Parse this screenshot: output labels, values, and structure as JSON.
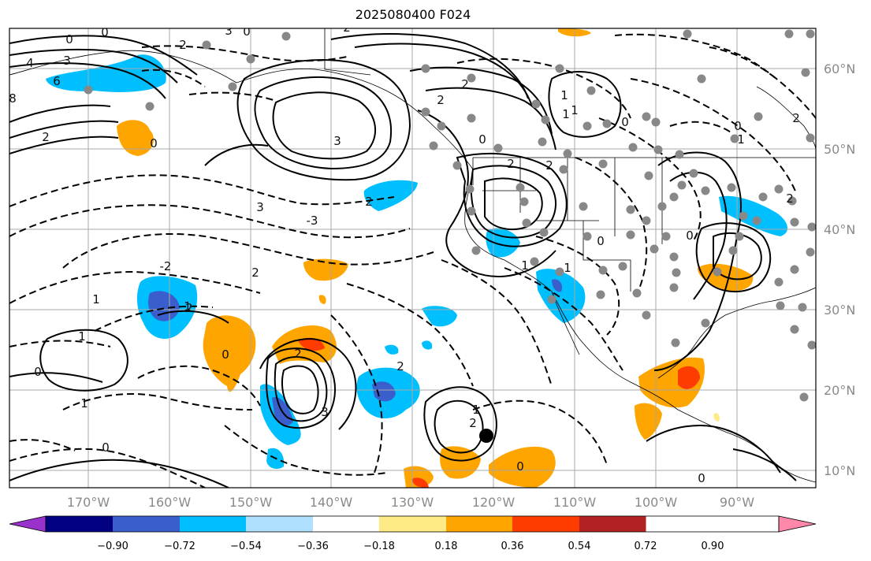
{
  "title": "2025080400 F024",
  "map": {
    "lon_ticks": [
      "170°W",
      "160°W",
      "150°W",
      "140°W",
      "130°W",
      "120°W",
      "110°W",
      "100°W",
      "90°W"
    ],
    "lat_ticks": [
      "60°N",
      "50°N",
      "40°N",
      "30°N",
      "20°N",
      "10°N"
    ],
    "contour_labels": [
      "0",
      "0",
      "4",
      "3",
      "6",
      "8",
      "2",
      "2",
      "0",
      "0",
      "3",
      "3",
      "2",
      "-3",
      "-2",
      "3",
      "2",
      "2",
      "1",
      "1",
      "0",
      "1",
      "0",
      "0",
      "1",
      "2",
      "3",
      "2",
      "2",
      "2",
      "2",
      "1",
      "1",
      "0",
      "0",
      "2",
      "1",
      "0",
      "1",
      "1",
      "2",
      "0",
      "0",
      "1",
      "0",
      "2",
      "0",
      "1",
      "2",
      "2"
    ]
  },
  "colorbar": {
    "ticks": [
      "−0.90",
      "−0.72",
      "−0.54",
      "−0.36",
      "−0.18",
      "0.18",
      "0.36",
      "0.54",
      "0.72",
      "0.90"
    ],
    "colors": [
      "#9932cc",
      "#000080",
      "#3a5fcd",
      "#00bfff",
      "#afe1ff",
      "#ffffff",
      "#ffeb86",
      "#ffa500",
      "#ff3c00",
      "#b22222",
      "#ff88aa"
    ]
  }
}
